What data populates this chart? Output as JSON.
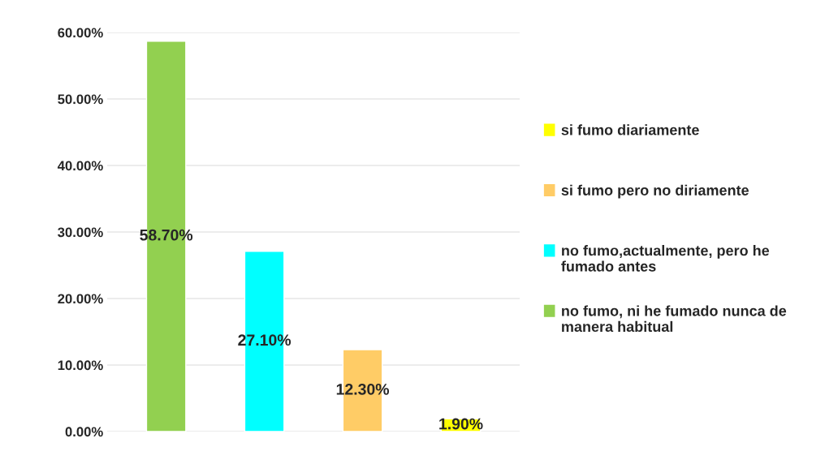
{
  "chart_data": {
    "type": "bar",
    "categories": [
      null,
      null,
      null,
      null
    ],
    "series": [
      {
        "name": "no fumo, ni he fumado nunca de manera habitual",
        "color": "#92d050",
        "values": [
          58.7,
          null,
          null,
          null
        ],
        "value_labels": [
          "58.70%",
          null,
          null,
          null
        ]
      },
      {
        "name": "no fumo,actualmente, pero he fumado antes",
        "color": "#00ffff",
        "values": [
          null,
          27.1,
          null,
          null
        ],
        "value_labels": [
          null,
          "27.10%",
          null,
          null
        ]
      },
      {
        "name": "si fumo pero no diriamente",
        "color": "#ffcc66",
        "values": [
          null,
          null,
          12.3,
          null
        ],
        "value_labels": [
          null,
          null,
          "12.30%",
          null
        ]
      },
      {
        "name": "si fumo diariamente",
        "color": "#ffff00",
        "values": [
          null,
          null,
          null,
          1.9
        ],
        "value_labels": [
          null,
          null,
          null,
          "1.90%"
        ]
      }
    ],
    "ylim": [
      0,
      60
    ],
    "yticks": [
      {
        "value": 0,
        "label": "0.00%"
      },
      {
        "value": 10,
        "label": "10.00%"
      },
      {
        "value": 20,
        "label": "20.00%"
      },
      {
        "value": 30,
        "label": "30.00%"
      },
      {
        "value": 40,
        "label": "40.00%"
      },
      {
        "value": 50,
        "label": "50.00%"
      },
      {
        "value": 60,
        "label": "60.00%"
      }
    ],
    "grid": "y",
    "legend": "right"
  }
}
